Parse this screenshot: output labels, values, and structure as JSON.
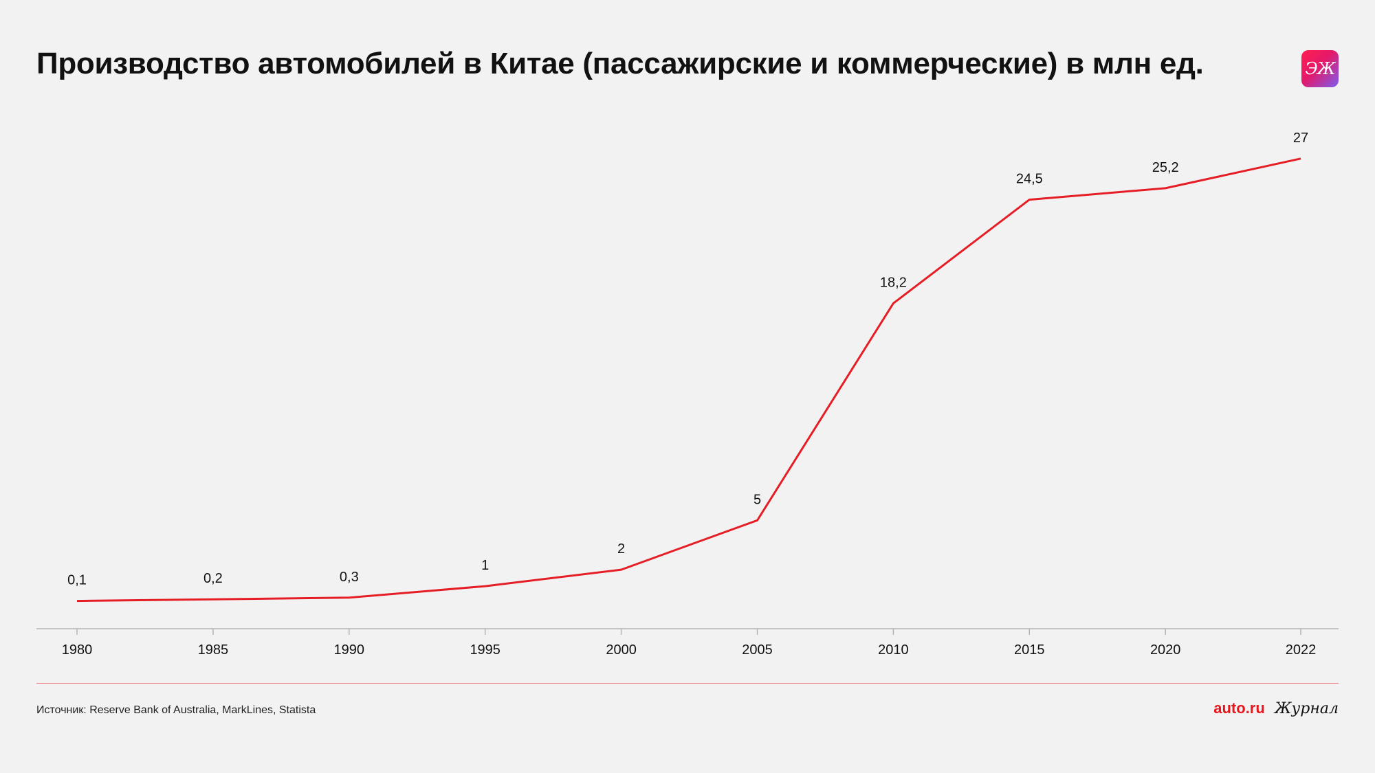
{
  "header": {
    "title": "Производство автомобилей в Китае (пассажирские и коммерческие) в млн ед.",
    "logo_text": "ЭЖ"
  },
  "footer": {
    "source": "Источник: Reserve Bank of Australia, MarkLines, Statista",
    "brand_auto": "auto.ru",
    "brand_journal": "Журнал"
  },
  "colors": {
    "line": "#e51e25",
    "axis": "#b5b5b5",
    "background": "#f3f2f2"
  },
  "chart_data": {
    "type": "line",
    "title": "Производство автомобилей в Китае (пассажирские и коммерческие) в млн ед.",
    "xlabel": "",
    "ylabel": "",
    "categories": [
      "1980",
      "1985",
      "1990",
      "1995",
      "2000",
      "2005",
      "2010",
      "2015",
      "2020",
      "2022"
    ],
    "x": [
      1980,
      1985,
      1990,
      1995,
      2000,
      2005,
      2010,
      2015,
      2020,
      2022
    ],
    "series": [
      {
        "values": [
          0.1,
          0.2,
          0.3,
          1,
          2,
          5,
          18.2,
          24.5,
          25.2,
          27
        ],
        "labels": [
          "0,1",
          "0,2",
          "0,3",
          "1",
          "2",
          "5",
          "18,2",
          "24,5",
          "25,2",
          "27"
        ]
      }
    ],
    "ylim": [
      0,
      28
    ],
    "grid": false,
    "legend": "none"
  }
}
